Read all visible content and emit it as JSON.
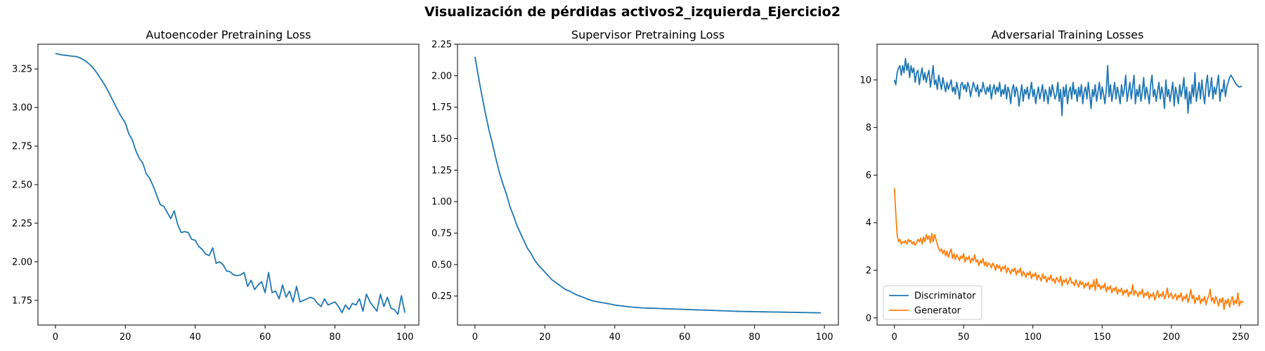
{
  "suptitle": "Visualización de pérdidas activos2_izquierda_Ejercicio2",
  "colors": {
    "blue": "#1f77b4",
    "orange": "#ff7f0e"
  },
  "chart_data": [
    {
      "type": "line",
      "title": "Autoencoder Pretraining Loss",
      "xlabel": "",
      "ylabel": "",
      "xlim": [
        -5,
        104
      ],
      "ylim": [
        1.59,
        3.41
      ],
      "xticks": [
        0,
        20,
        40,
        60,
        80,
        100
      ],
      "yticks": [
        1.75,
        2.0,
        2.25,
        2.5,
        2.75,
        3.0,
        3.25
      ],
      "ytick_decimals": 2,
      "series": [
        {
          "name": "",
          "color": "#1f77b4",
          "y": [
            3.35,
            3.345,
            3.34,
            3.338,
            3.335,
            3.332,
            3.33,
            3.322,
            3.31,
            3.295,
            3.275,
            3.25,
            3.22,
            3.185,
            3.15,
            3.11,
            3.065,
            3.02,
            2.975,
            2.935,
            2.9,
            2.83,
            2.79,
            2.72,
            2.67,
            2.64,
            2.57,
            2.54,
            2.49,
            2.43,
            2.37,
            2.36,
            2.32,
            2.28,
            2.33,
            2.24,
            2.19,
            2.195,
            2.19,
            2.145,
            2.14,
            2.1,
            2.08,
            2.05,
            2.04,
            2.09,
            1.99,
            2.0,
            1.98,
            1.94,
            1.935,
            1.915,
            1.91,
            1.915,
            1.93,
            1.84,
            1.88,
            1.82,
            1.85,
            1.87,
            1.8,
            1.93,
            1.8,
            1.81,
            1.76,
            1.85,
            1.77,
            1.81,
            1.74,
            1.84,
            1.74,
            1.75,
            1.76,
            1.77,
            1.76,
            1.73,
            1.71,
            1.76,
            1.72,
            1.73,
            1.74,
            1.71,
            1.67,
            1.72,
            1.69,
            1.73,
            1.72,
            1.76,
            1.68,
            1.79,
            1.74,
            1.71,
            1.68,
            1.79,
            1.71,
            1.77,
            1.7,
            1.69,
            1.66,
            1.78,
            1.67
          ]
        }
      ]
    },
    {
      "type": "line",
      "title": "Supervisor Pretraining Loss",
      "xlabel": "",
      "ylabel": "",
      "xlim": [
        -5,
        104
      ],
      "ylim": [
        0.02,
        2.25
      ],
      "xticks": [
        0,
        20,
        40,
        60,
        80,
        100
      ],
      "yticks": [
        0.25,
        0.5,
        0.75,
        1.0,
        1.25,
        1.5,
        1.75,
        2.0,
        2.25
      ],
      "ytick_decimals": 2,
      "series": [
        {
          "name": "",
          "color": "#1f77b4",
          "y": [
            2.15,
            1.99,
            1.84,
            1.7,
            1.57,
            1.46,
            1.34,
            1.23,
            1.14,
            1.06,
            0.96,
            0.89,
            0.81,
            0.75,
            0.69,
            0.63,
            0.59,
            0.54,
            0.5,
            0.47,
            0.44,
            0.41,
            0.38,
            0.36,
            0.34,
            0.32,
            0.3,
            0.29,
            0.275,
            0.26,
            0.25,
            0.24,
            0.228,
            0.218,
            0.21,
            0.205,
            0.2,
            0.195,
            0.19,
            0.185,
            0.178,
            0.175,
            0.172,
            0.168,
            0.165,
            0.162,
            0.16,
            0.158,
            0.156,
            0.155,
            0.154,
            0.153,
            0.152,
            0.151,
            0.15,
            0.149,
            0.148,
            0.147,
            0.146,
            0.145,
            0.144,
            0.143,
            0.142,
            0.141,
            0.14,
            0.139,
            0.138,
            0.137,
            0.136,
            0.135,
            0.134,
            0.133,
            0.132,
            0.131,
            0.13,
            0.129,
            0.128,
            0.128,
            0.127,
            0.127,
            0.126,
            0.126,
            0.125,
            0.125,
            0.124,
            0.124,
            0.123,
            0.123,
            0.122,
            0.122,
            0.121,
            0.121,
            0.12,
            0.12,
            0.119,
            0.119,
            0.118,
            0.118,
            0.117,
            0.117
          ]
        }
      ]
    },
    {
      "type": "line",
      "title": "Adversarial Training Losses",
      "xlabel": "",
      "ylabel": "",
      "xlim": [
        -12.5,
        262.5
      ],
      "ylim": [
        -0.3,
        11.5
      ],
      "xticks": [
        0,
        50,
        100,
        150,
        200,
        250
      ],
      "yticks": [
        0,
        2,
        4,
        6,
        8,
        10
      ],
      "ytick_decimals": 0,
      "legend": {
        "position": "lower-left"
      },
      "series": [
        {
          "name": "Discriminator",
          "color": "#1f77b4",
          "y": [
            10.0,
            9.8,
            10.3,
            10.5,
            10.6,
            10.2,
            10.6,
            10.3,
            10.9,
            10.4,
            10.7,
            10.1,
            10.6,
            10.3,
            10.5,
            9.9,
            10.3,
            10.4,
            9.8,
            10.2,
            10.5,
            10.0,
            10.3,
            9.9,
            10.2,
            10.4,
            9.7,
            10.1,
            10.6,
            9.8,
            10.0,
            9.6,
            10.2,
            9.9,
            9.6,
            10.1,
            9.8,
            9.5,
            9.9,
            9.6,
            9.8,
            10.0,
            9.5,
            9.7,
            9.4,
            9.9,
            9.6,
            9.2,
            9.8,
            9.9,
            9.6,
            9.8,
            9.5,
            9.9,
            9.7,
            9.3,
            9.6,
            9.9,
            9.7,
            9.5,
            9.8,
            9.3,
            9.6,
            9.5,
            9.9,
            9.6,
            9.4,
            9.7,
            9.5,
            9.8,
            9.2,
            9.6,
            9.8,
            9.4,
            9.7,
            9.5,
            9.9,
            9.3,
            9.6,
            9.4,
            9.8,
            9.2,
            9.7,
            9.5,
            9.0,
            9.6,
            9.8,
            9.3,
            9.7,
            9.5,
            8.9,
            9.4,
            9.8,
            9.1,
            9.6,
            9.4,
            9.7,
            9.2,
            9.5,
            9.9,
            9.3,
            9.6,
            9.0,
            9.4,
            9.7,
            9.2,
            9.5,
            9.8,
            9.1,
            9.6,
            9.4,
            9.0,
            9.7,
            9.3,
            9.8,
            9.5,
            9.2,
            9.4,
            9.9,
            9.1,
            9.6,
            8.5,
            9.7,
            9.3,
            9.8,
            9.0,
            9.5,
            9.7,
            9.2,
            9.9,
            9.4,
            9.6,
            9.1,
            9.7,
            9.3,
            9.8,
            9.0,
            9.5,
            9.7,
            9.2,
            9.9,
            9.4,
            8.8,
            9.6,
            9.3,
            9.8,
            9.1,
            9.5,
            9.9,
            9.2,
            9.7,
            9.4,
            9.0,
            9.6,
            10.6,
            9.3,
            9.8,
            9.1,
            9.5,
            9.9,
            9.2,
            9.7,
            9.4,
            9.0,
            9.8,
            9.3,
            9.6,
            10.2,
            9.1,
            9.5,
            9.9,
            9.2,
            9.7,
            10.2,
            9.0,
            9.6,
            9.3,
            9.8,
            9.1,
            9.5,
            10.1,
            9.2,
            9.7,
            9.4,
            9.0,
            9.8,
            10.2,
            9.3,
            9.6,
            9.1,
            9.5,
            9.9,
            9.2,
            9.7,
            9.4,
            8.8,
            10.0,
            9.3,
            9.6,
            9.1,
            9.5,
            9.9,
            8.9,
            9.7,
            9.4,
            9.0,
            9.8,
            9.3,
            9.6,
            10.1,
            9.2,
            9.7,
            8.6,
            9.5,
            9.0,
            9.8,
            9.3,
            10.3,
            9.1,
            9.5,
            9.9,
            9.2,
            10.0,
            9.4,
            9.0,
            9.8,
            10.2,
            9.3,
            9.6,
            10.1,
            9.2,
            9.7,
            9.4,
            9.8,
            10.2,
            9.1,
            9.6,
            9.5,
            10.0,
            9.3,
            9.7,
            9.9,
            10.1,
            10.2,
            10.1,
            10.0,
            9.9,
            9.8,
            9.75,
            9.7,
            9.72,
            9.74
          ]
        },
        {
          "name": "Generator",
          "color": "#ff7f0e",
          "y": [
            5.45,
            4.4,
            3.5,
            3.2,
            3.3,
            3.1,
            3.2,
            3.15,
            3.25,
            3.1,
            3.3,
            3.2,
            3.25,
            3.1,
            3.2,
            3.05,
            3.15,
            3.3,
            3.2,
            3.35,
            3.1,
            3.4,
            3.2,
            3.5,
            3.3,
            3.45,
            3.15,
            3.55,
            3.2,
            3.5,
            3.3,
            3.1,
            2.9,
            2.8,
            2.9,
            2.7,
            2.85,
            2.6,
            2.8,
            2.55,
            2.75,
            2.9,
            2.5,
            2.7,
            2.45,
            2.65,
            2.55,
            2.4,
            2.6,
            2.5,
            2.7,
            2.35,
            2.55,
            2.45,
            2.6,
            2.3,
            2.5,
            2.4,
            2.65,
            2.35,
            2.45,
            2.2,
            2.4,
            2.3,
            2.5,
            2.2,
            2.35,
            2.15,
            2.3,
            2.25,
            2.1,
            2.3,
            2.2,
            2.0,
            2.25,
            2.1,
            2.2,
            1.95,
            2.15,
            2.05,
            2.2,
            1.9,
            2.1,
            2.0,
            1.85,
            2.05,
            1.95,
            2.1,
            1.8,
            2.0,
            1.9,
            2.1,
            1.75,
            1.95,
            1.85,
            1.7,
            1.9,
            1.8,
            1.95,
            1.65,
            1.85,
            1.75,
            1.9,
            1.6,
            1.8,
            1.7,
            1.55,
            1.85,
            1.65,
            1.75,
            1.5,
            1.7,
            1.6,
            1.8,
            1.55,
            1.65,
            1.45,
            1.7,
            1.6,
            1.5,
            1.75,
            1.35,
            1.6,
            1.5,
            1.65,
            1.4,
            1.55,
            1.7,
            1.45,
            1.5,
            1.35,
            1.6,
            1.45,
            1.3,
            1.55,
            1.4,
            1.5,
            1.25,
            1.45,
            1.35,
            1.5,
            1.2,
            1.4,
            1.3,
            1.6,
            1.15,
            1.65,
            1.3,
            1.4,
            1.2,
            1.35,
            1.25,
            1.45,
            1.1,
            1.3,
            1.2,
            1.35,
            1.05,
            1.25,
            1.15,
            1.3,
            1.0,
            1.2,
            1.1,
            1.25,
            0.95,
            1.15,
            1.05,
            1.2,
            0.9,
            1.1,
            1.0,
            1.4,
            0.95,
            1.15,
            1.05,
            0.9,
            1.1,
            1.0,
            1.2,
            0.85,
            1.05,
            0.95,
            1.1,
            0.8,
            1.0,
            0.9,
            1.05,
            0.75,
            0.95,
            1.15,
            0.85,
            1.0,
            0.9,
            1.1,
            0.8,
            0.95,
            1.25,
            0.85,
            0.95,
            1.05,
            0.8,
            0.9,
            1.0,
            0.75,
            0.95,
            0.85,
            1.05,
            0.7,
            0.9,
            0.8,
            1.0,
            0.65,
            0.85,
            1.2,
            0.8,
            0.95,
            0.6,
            0.85,
            0.75,
            0.95,
            0.6,
            0.8,
            0.7,
            0.9,
            0.55,
            0.8,
            0.9,
            1.2,
            0.7,
            0.85,
            0.6,
            0.9,
            0.75,
            0.5,
            0.8,
            0.65,
            0.85,
            0.35,
            0.75,
            0.6,
            0.8,
            0.45,
            0.7,
            0.9,
            0.55,
            0.75,
            0.6,
            1.05,
            0.5,
            0.7,
            0.65,
            0.7
          ]
        }
      ]
    }
  ]
}
